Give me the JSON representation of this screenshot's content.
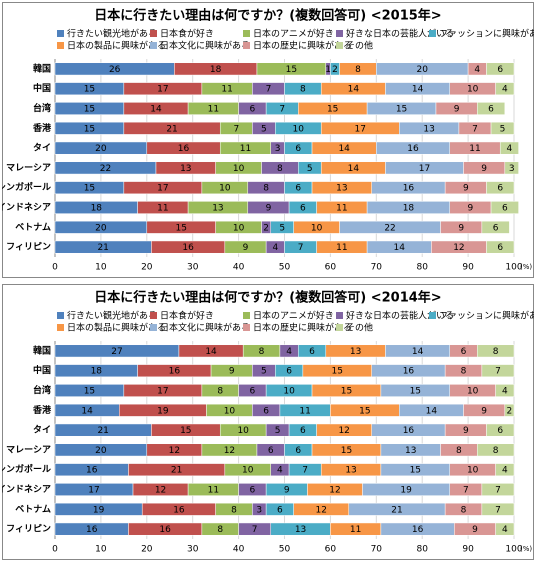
{
  "chart_data": [
    {
      "type": "stacked-bar-horizontal",
      "title": "日本に行きたい理由は何ですか？(複数回答可) <2015年>",
      "categories": [
        "韓国",
        "中国",
        "台湾",
        "香港",
        "タイ",
        "マレーシア",
        "シンガポール",
        "インドネシア",
        "ベトナム",
        "フィリピン"
      ],
      "series": [
        {
          "name": "行きたい観光地がある",
          "color": "#4f81bd",
          "values": [
            26,
            15,
            15,
            15,
            20,
            22,
            15,
            18,
            20,
            21
          ]
        },
        {
          "name": "日本食が好き",
          "color": "#c0504d",
          "values": [
            18,
            17,
            14,
            21,
            16,
            13,
            17,
            11,
            15,
            16
          ]
        },
        {
          "name": "日本のアニメが好き",
          "color": "#9bbb59",
          "values": [
            15,
            11,
            11,
            7,
            11,
            10,
            10,
            13,
            10,
            9
          ]
        },
        {
          "name": "好きな日本の芸能人がいる",
          "color": "#8064a2",
          "values": [
            1,
            7,
            6,
            5,
            3,
            8,
            8,
            9,
            2,
            4
          ]
        },
        {
          "name": "ファッションに興味がある",
          "color": "#4bacc6",
          "values": [
            2,
            8,
            7,
            10,
            6,
            5,
            6,
            6,
            5,
            7
          ]
        },
        {
          "name": "日本の製品に興味がある",
          "color": "#f79646",
          "values": [
            8,
            14,
            15,
            17,
            14,
            14,
            13,
            11,
            10,
            11
          ]
        },
        {
          "name": "日本文化に興味がある",
          "color": "#95b3d7",
          "values": [
            20,
            14,
            15,
            13,
            16,
            17,
            16,
            18,
            22,
            14
          ]
        },
        {
          "name": "日本の歴史に興味がある",
          "color": "#d99694",
          "values": [
            4,
            10,
            9,
            7,
            11,
            9,
            9,
            9,
            9,
            12
          ]
        },
        {
          "name": "その他",
          "color": "#c3d69b",
          "values": [
            6,
            4,
            6,
            5,
            4,
            3,
            6,
            6,
            6,
            6
          ]
        }
      ],
      "xlim": [
        0,
        100
      ],
      "xticks": [
        0,
        10,
        20,
        30,
        40,
        50,
        60,
        70,
        80,
        90,
        100
      ],
      "x_unit": "(%)",
      "grid": true
    },
    {
      "type": "stacked-bar-horizontal",
      "title": "日本に行きたい理由は何ですか？(複数回答可) <2014年>",
      "categories": [
        "韓国",
        "中国",
        "台湾",
        "香港",
        "タイ",
        "マレーシア",
        "シンガポール",
        "インドネシア",
        "ベトナム",
        "フィリピン"
      ],
      "series": [
        {
          "name": "行きたい観光地がある",
          "color": "#4f81bd",
          "values": [
            27,
            18,
            15,
            14,
            21,
            20,
            16,
            17,
            19,
            16
          ]
        },
        {
          "name": "日本食が好き",
          "color": "#c0504d",
          "values": [
            14,
            16,
            17,
            19,
            15,
            12,
            21,
            12,
            16,
            16
          ]
        },
        {
          "name": "日本のアニメが好き",
          "color": "#9bbb59",
          "values": [
            8,
            9,
            8,
            10,
            10,
            12,
            10,
            11,
            8,
            8
          ]
        },
        {
          "name": "好きな日本の芸能人がいる",
          "color": "#8064a2",
          "values": [
            4,
            5,
            6,
            6,
            5,
            6,
            4,
            6,
            3,
            7
          ]
        },
        {
          "name": "ファッションに興味がある",
          "color": "#4bacc6",
          "values": [
            6,
            6,
            10,
            11,
            6,
            6,
            7,
            9,
            6,
            13
          ]
        },
        {
          "name": "日本の製品に興味がある",
          "color": "#f79646",
          "values": [
            13,
            15,
            15,
            15,
            12,
            15,
            13,
            12,
            12,
            11
          ]
        },
        {
          "name": "日本文化に興味がある",
          "color": "#95b3d7",
          "values": [
            14,
            16,
            15,
            14,
            16,
            13,
            15,
            19,
            21,
            16
          ]
        },
        {
          "name": "日本の歴史に興味がある",
          "color": "#d99694",
          "values": [
            6,
            8,
            10,
            9,
            9,
            8,
            10,
            7,
            8,
            9
          ]
        },
        {
          "name": "その他",
          "color": "#c3d69b",
          "values": [
            8,
            7,
            4,
            2,
            6,
            8,
            4,
            7,
            7,
            4
          ]
        }
      ],
      "xlim": [
        0,
        100
      ],
      "xticks": [
        0,
        10,
        20,
        30,
        40,
        50,
        60,
        70,
        80,
        90,
        100
      ],
      "x_unit": "(%)",
      "grid": true
    }
  ]
}
